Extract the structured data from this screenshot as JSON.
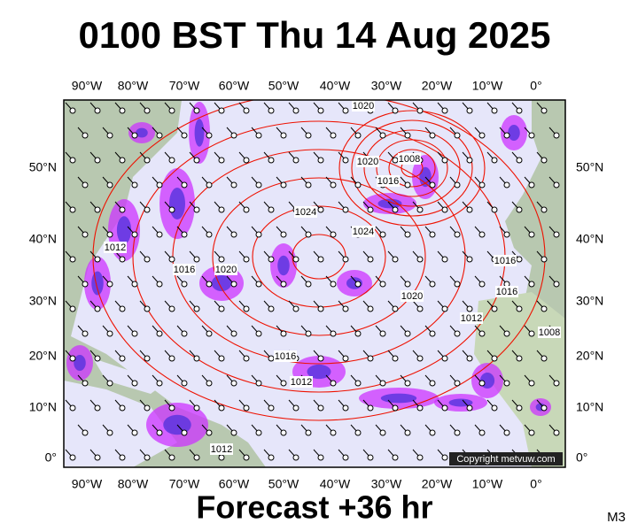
{
  "title": "0100 BST Thu 14 Aug 2025",
  "subtitle": "Forecast +36 hr",
  "model": "M3",
  "copyright": "Copyright metvuw.com",
  "longitude_labels": [
    "90°W",
    "80°W",
    "70°W",
    "60°W",
    "50°W",
    "40°W",
    "30°W",
    "20°W",
    "10°W",
    "0°"
  ],
  "latitude_labels": [
    "50°N",
    "40°N",
    "30°N",
    "20°N",
    "10°N",
    "0°"
  ],
  "isobar_labels": [
    "1020",
    "1008",
    "1020",
    "1016",
    "1024",
    "1024",
    "1012",
    "1016",
    "1020",
    "1020",
    "1016",
    "1016",
    "1012",
    "1008",
    "1016",
    "1012",
    "1012"
  ]
}
